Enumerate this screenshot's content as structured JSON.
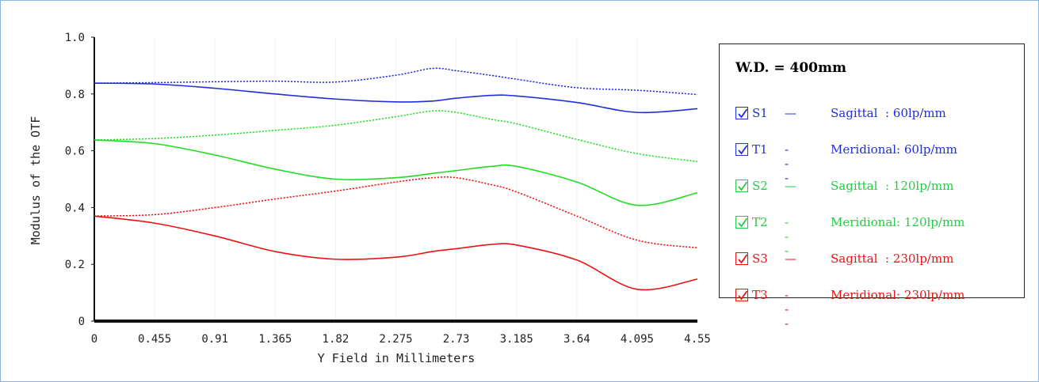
{
  "chart_data": {
    "type": "line",
    "xlabel": "Y Field in Millimeters",
    "ylabel": "Modulus of the OTF",
    "xlim": [
      0,
      4.55
    ],
    "ylim": [
      0,
      1.0
    ],
    "x_ticks": [
      "0",
      "0.455",
      "0.91",
      "1.365",
      "1.82",
      "2.275",
      "2.73",
      "3.185",
      "3.64",
      "4.095",
      "4.55"
    ],
    "y_ticks": [
      "0",
      "0.2",
      "0.4",
      "0.6",
      "0.8",
      "1.0"
    ],
    "x": [
      0,
      0.455,
      0.91,
      1.365,
      1.82,
      2.275,
      2.55,
      2.73,
      3.0,
      3.185,
      3.64,
      4.095,
      4.55
    ],
    "series": [
      {
        "name": "S1",
        "color": "#1f2fd8",
        "dash": "solid",
        "values": [
          0.838,
          0.835,
          0.82,
          0.8,
          0.782,
          0.772,
          0.775,
          0.785,
          0.795,
          0.793,
          0.77,
          0.735,
          0.748
        ]
      },
      {
        "name": "T1",
        "color": "#1f2fd8",
        "dash": "dotted",
        "values": [
          0.838,
          0.84,
          0.843,
          0.845,
          0.842,
          0.866,
          0.89,
          0.882,
          0.865,
          0.852,
          0.822,
          0.813,
          0.798
        ]
      },
      {
        "name": "S2",
        "color": "#22dd22",
        "dash": "solid",
        "values": [
          0.638,
          0.625,
          0.585,
          0.535,
          0.5,
          0.505,
          0.52,
          0.53,
          0.545,
          0.545,
          0.49,
          0.408,
          0.452
        ]
      },
      {
        "name": "T2",
        "color": "#22dd22",
        "dash": "dotted",
        "values": [
          0.638,
          0.643,
          0.655,
          0.672,
          0.69,
          0.72,
          0.74,
          0.735,
          0.71,
          0.695,
          0.64,
          0.59,
          0.562
        ]
      },
      {
        "name": "S3",
        "color": "#ee1111",
        "dash": "solid",
        "values": [
          0.37,
          0.345,
          0.3,
          0.245,
          0.218,
          0.225,
          0.245,
          0.255,
          0.27,
          0.268,
          0.215,
          0.112,
          0.148
        ]
      },
      {
        "name": "T3",
        "color": "#ee1111",
        "dash": "dotted",
        "values": [
          0.37,
          0.375,
          0.4,
          0.43,
          0.458,
          0.49,
          0.505,
          0.505,
          0.48,
          0.455,
          0.37,
          0.285,
          0.258
        ]
      }
    ],
    "grid": "vertical"
  },
  "legend": {
    "title": "W.D. = 400mm",
    "items": [
      {
        "code": "S1",
        "symbol": "—",
        "desc": "Sagittal  : 60lp/mm",
        "color": "#1f2fd8"
      },
      {
        "code": "T1",
        "symbol": "---",
        "desc": "Meridional: 60lp/mm",
        "color": "#1f2fd8"
      },
      {
        "code": "S2",
        "symbol": "—",
        "desc": "Sagittal  : 120lp/mm",
        "color": "#22cc44"
      },
      {
        "code": "T2",
        "symbol": "---",
        "desc": "Meridional: 120lp/mm",
        "color": "#22cc44"
      },
      {
        "code": "S3",
        "symbol": "—",
        "desc": "Sagittal  : 230lp/mm",
        "color": "#ee1111"
      },
      {
        "code": "T3",
        "symbol": "---",
        "desc": "Meridional: 230lp/mm",
        "color": "#ee1111"
      }
    ]
  }
}
